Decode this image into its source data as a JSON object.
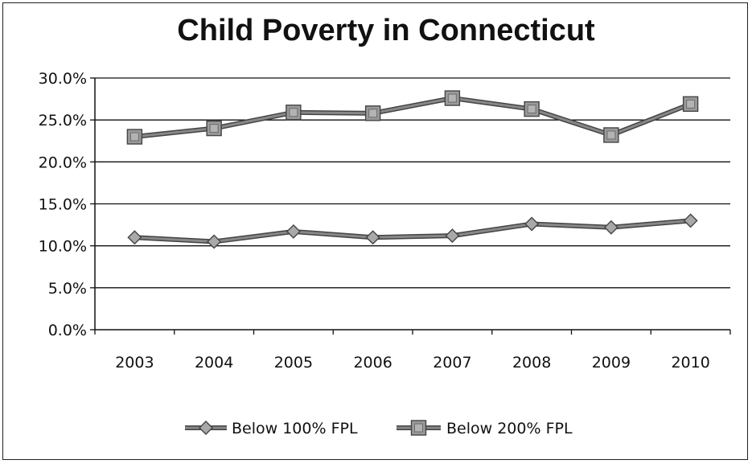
{
  "chart_data": {
    "type": "line",
    "title": "Child Poverty in Connecticut",
    "xlabel": "",
    "ylabel": "",
    "categories": [
      "2003",
      "2004",
      "2005",
      "2006",
      "2007",
      "2008",
      "2009",
      "2010"
    ],
    "ylim": [
      0,
      30
    ],
    "yticks": [
      0,
      5,
      10,
      15,
      20,
      25,
      30
    ],
    "ytick_labels": [
      "0.0%",
      "5.0%",
      "10.0%",
      "15.0%",
      "20.0%",
      "25.0%",
      "30.0%"
    ],
    "grid": true,
    "legend_position": "bottom",
    "series": [
      {
        "name": "Below 100% FPL",
        "marker": "diamond",
        "color": "#888888",
        "values": [
          11.0,
          10.5,
          11.7,
          11.0,
          11.2,
          12.6,
          12.2,
          13.0
        ]
      },
      {
        "name": "Below 200% FPL",
        "marker": "square",
        "color": "#888888",
        "values": [
          23.0,
          24.0,
          25.9,
          25.8,
          27.6,
          26.3,
          23.2,
          26.9
        ]
      }
    ]
  }
}
